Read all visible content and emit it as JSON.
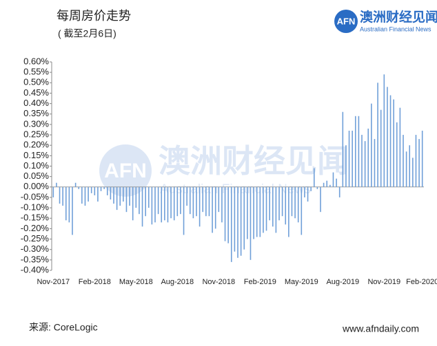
{
  "chart_data": {
    "type": "bar",
    "title": "每周房价走势",
    "subtitle": "( 截至2月6日)",
    "source": "来源:  CoreLogic",
    "website": "www.afndaily.com",
    "logo": {
      "mark": "AFN",
      "name": "澳洲财经见闻",
      "english": "Australian Financial News"
    },
    "watermark": {
      "mark": "AFN",
      "name": "澳洲财经见闻",
      "english": "Australian Financial News"
    },
    "color": "#6f9fd8",
    "categories": [
      "Nov-2017",
      null,
      null,
      null,
      null,
      null,
      null,
      null,
      null,
      null,
      null,
      null,
      null,
      "Feb-2018",
      null,
      null,
      null,
      null,
      null,
      null,
      null,
      null,
      null,
      null,
      null,
      null,
      "May-2018",
      null,
      null,
      null,
      null,
      null,
      null,
      null,
      null,
      null,
      null,
      null,
      null,
      "Aug-2018",
      null,
      null,
      null,
      null,
      null,
      null,
      null,
      null,
      null,
      null,
      null,
      null,
      "Nov-2018",
      null,
      null,
      null,
      null,
      null,
      null,
      null,
      null,
      null,
      null,
      null,
      null,
      "Feb-2019",
      null,
      null,
      null,
      null,
      null,
      null,
      null,
      null,
      null,
      null,
      null,
      null,
      "May-2019",
      null,
      null,
      null,
      null,
      null,
      null,
      null,
      null,
      null,
      null,
      null,
      null,
      "Aug-2019",
      null,
      null,
      null,
      null,
      null,
      null,
      null,
      null,
      null,
      null,
      null,
      null,
      "Nov-2019",
      null,
      null,
      null,
      null,
      null,
      null,
      null,
      null,
      null,
      null,
      null,
      "Feb-2020"
    ],
    "values": [
      -0.05,
      0.02,
      -0.08,
      -0.09,
      -0.16,
      -0.17,
      -0.23,
      0.02,
      -0.01,
      -0.08,
      -0.09,
      -0.07,
      -0.03,
      -0.04,
      -0.07,
      -0.02,
      -0.01,
      -0.04,
      -0.06,
      -0.08,
      -0.11,
      -0.09,
      -0.07,
      -0.12,
      -0.09,
      -0.16,
      -0.1,
      -0.13,
      -0.19,
      -0.14,
      -0.1,
      -0.18,
      -0.17,
      -0.13,
      -0.17,
      -0.16,
      -0.17,
      -0.15,
      -0.16,
      -0.14,
      -0.13,
      -0.23,
      -0.09,
      -0.13,
      -0.15,
      -0.14,
      -0.19,
      -0.12,
      -0.14,
      -0.14,
      -0.22,
      -0.2,
      -0.12,
      -0.17,
      -0.26,
      -0.27,
      -0.36,
      -0.31,
      -0.34,
      -0.33,
      -0.3,
      -0.25,
      -0.35,
      -0.25,
      -0.24,
      -0.24,
      -0.22,
      -0.21,
      -0.16,
      -0.19,
      -0.22,
      -0.16,
      -0.14,
      -0.18,
      -0.24,
      -0.14,
      -0.15,
      -0.17,
      -0.23,
      -0.05,
      -0.07,
      -0.02,
      0.09,
      -0.01,
      -0.12,
      0.02,
      0.03,
      0.01,
      0.07,
      0.04,
      -0.05,
      0.36,
      0.2,
      0.27,
      0.27,
      0.34,
      0.34,
      0.25,
      0.22,
      0.28,
      0.4,
      0.23,
      0.5,
      0.37,
      0.54,
      0.48,
      0.44,
      0.42,
      0.31,
      0.38,
      0.25,
      0.17,
      0.2,
      0.14,
      0.25,
      0.23,
      0.27
    ],
    "ylim": [
      -0.4,
      0.6
    ],
    "yticks": [
      {
        "value": -0.4,
        "label": "-0.40%"
      },
      {
        "value": -0.35,
        "label": "-0.35%"
      },
      {
        "value": -0.3,
        "label": "-0.30%"
      },
      {
        "value": -0.25,
        "label": "-0.25%"
      },
      {
        "value": -0.2,
        "label": "-0.20%"
      },
      {
        "value": -0.15,
        "label": "-0.15%"
      },
      {
        "value": -0.1,
        "label": "-0.10%"
      },
      {
        "value": -0.05,
        "label": "-0.05%"
      },
      {
        "value": 0,
        "label": "0.00%"
      },
      {
        "value": 0.05,
        "label": "0.05%"
      },
      {
        "value": 0.1,
        "label": "0.10%"
      },
      {
        "value": 0.15,
        "label": "0.15%"
      },
      {
        "value": 0.2,
        "label": "0.20%"
      },
      {
        "value": 0.25,
        "label": "0.25%"
      },
      {
        "value": 0.3,
        "label": "0.30%"
      },
      {
        "value": 0.35,
        "label": "0.35%"
      },
      {
        "value": 0.4,
        "label": "0.40%"
      },
      {
        "value": 0.45,
        "label": "0.45%"
      },
      {
        "value": 0.5,
        "label": "0.50%"
      },
      {
        "value": 0.55,
        "label": "0.55%"
      },
      {
        "value": 0.6,
        "label": "0.60%"
      }
    ],
    "grid": false
  }
}
